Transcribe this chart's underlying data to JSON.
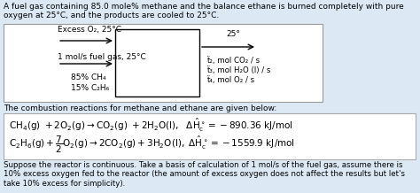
{
  "bg_color": "#dce9f5",
  "title_text": "A fuel gas containing 85.0 mole% methane and the balance ethane is burned completely with pure oxygen at 25°C, and the products are cooled to 25°C.",
  "combustion_label": "The combustion reactions for methane and ethane are given below:",
  "suppose_text": "Suppose the reactor is continuous. Take a basis of calculation of 1 mol/s of the fuel gas, assume there is 10% excess oxygen fed to the reactor (the amount of excess oxygen does not affect the results but let's take 10% excess for simplicity).",
  "excess_o2_label": "Excess O₂, 25°C",
  "fuel_label": "1 mol/s fuel gas, 25°C",
  "ch4_label": "85% CH₄",
  "c2h6_label": "15% C₂H₆",
  "out_temp": "25°",
  "out1": "ẗ₂, mol CO₂ / s",
  "out2": "ẗ₃, mol H₂O (l) / s",
  "out3": "ẗ₄, mol O₂ / s",
  "font_size_title": 6.5,
  "font_size_diagram": 6.5,
  "font_size_eq": 7.5,
  "font_size_suppose": 6.2,
  "font_size_comb_label": 6.5
}
